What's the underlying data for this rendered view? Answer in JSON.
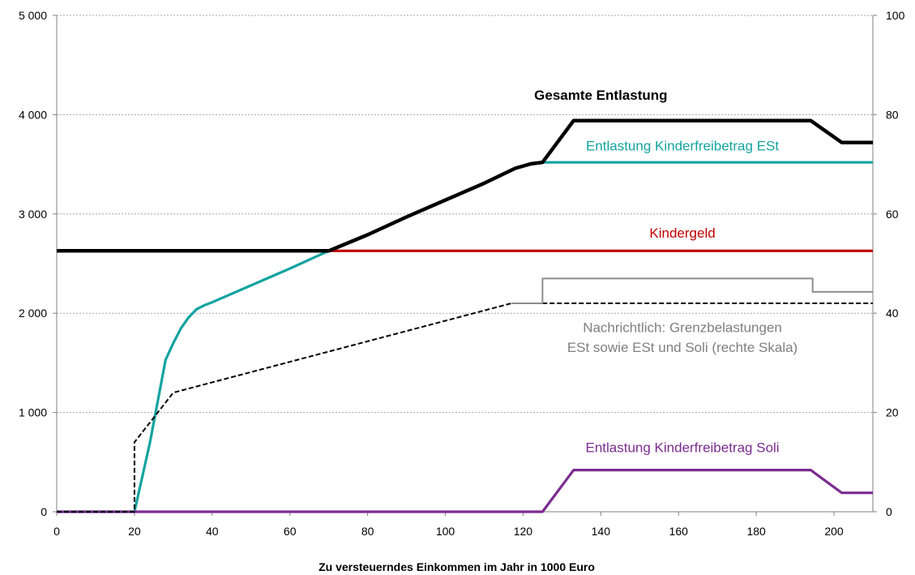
{
  "chart_data": {
    "type": "line",
    "xlabel": "Zu versteuerndes Einkommen im Jahr in 1000 Euro",
    "ylabel": "",
    "ylabel_right": "",
    "xlim": [
      0,
      210
    ],
    "ylim": [
      0,
      5000
    ],
    "ylim_right": [
      0,
      100
    ],
    "grid": true,
    "x_ticks": [
      0,
      20,
      40,
      60,
      80,
      100,
      120,
      140,
      160,
      180,
      200
    ],
    "x_tick_labels": [
      "0",
      "20",
      "40",
      "60",
      "80",
      "100",
      "120",
      "140",
      "160",
      "180",
      "200"
    ],
    "y_ticks": [
      0,
      1000,
      2000,
      3000,
      4000,
      5000
    ],
    "y_tick_labels": [
      "0",
      "1 000",
      "2 000",
      "3 000",
      "4 000",
      "5 000"
    ],
    "y_right_ticks": [
      0,
      20,
      40,
      60,
      80,
      100
    ],
    "y_right_tick_labels": [
      "0",
      "20",
      "40",
      "60",
      "80",
      "100"
    ],
    "series": [
      {
        "key": "kindergeld",
        "name": "Kindergeld",
        "color": "#c00000",
        "axis": "left",
        "dash": false,
        "points": [
          [
            0,
            2628
          ],
          [
            210,
            2628
          ]
        ]
      },
      {
        "key": "entlastung_est",
        "name": "Entlastung Kinderfreibetrag ESt",
        "color": "#14a3a0",
        "axis": "left",
        "dash": false,
        "points": [
          [
            0,
            0
          ],
          [
            20,
            0
          ],
          [
            24,
            700
          ],
          [
            28,
            1530
          ],
          [
            30,
            1700
          ],
          [
            32,
            1850
          ],
          [
            34,
            1960
          ],
          [
            36,
            2040
          ],
          [
            38,
            2080
          ],
          [
            40,
            2110
          ],
          [
            50,
            2280
          ],
          [
            60,
            2450
          ],
          [
            70,
            2628
          ],
          [
            80,
            2790
          ],
          [
            90,
            2970
          ],
          [
            100,
            3140
          ],
          [
            110,
            3310
          ],
          [
            118,
            3460
          ],
          [
            122,
            3505
          ],
          [
            125,
            3520
          ],
          [
            210,
            3520
          ]
        ]
      },
      {
        "key": "gesamte_entlastung",
        "name": "Gesamte Entlastung",
        "color": "#000000",
        "axis": "left",
        "dash": false,
        "points": [
          [
            0,
            2628
          ],
          [
            70,
            2628
          ],
          [
            80,
            2790
          ],
          [
            90,
            2970
          ],
          [
            100,
            3140
          ],
          [
            110,
            3310
          ],
          [
            118,
            3460
          ],
          [
            122,
            3505
          ],
          [
            125,
            3520
          ],
          [
            133,
            3940
          ],
          [
            194,
            3940
          ],
          [
            202,
            3720
          ],
          [
            210,
            3720
          ]
        ]
      },
      {
        "key": "entlastung_soli",
        "name": "Entlastung Kinderfreibetrag Soli",
        "color": "#7b2c8f",
        "axis": "left",
        "dash": false,
        "points": [
          [
            0,
            0
          ],
          [
            125,
            0
          ],
          [
            133,
            420
          ],
          [
            194,
            420
          ],
          [
            202,
            190
          ],
          [
            210,
            190
          ]
        ]
      },
      {
        "key": "grenzbelastung_est",
        "name": "",
        "color": "#000000",
        "axis": "right",
        "dash": true,
        "points": [
          [
            0,
            0
          ],
          [
            20,
            0
          ],
          [
            20,
            14
          ],
          [
            30,
            24
          ],
          [
            117,
            42
          ],
          [
            210,
            42
          ]
        ]
      },
      {
        "key": "grenzbelastung_est_soli",
        "name": "",
        "color": "#8c8c8c",
        "axis": "right",
        "dash": false,
        "points": [
          [
            117,
            42
          ],
          [
            125,
            42
          ],
          [
            125,
            47
          ],
          [
            194.5,
            47
          ],
          [
            194.5,
            44.3
          ],
          [
            210,
            44.3
          ]
        ]
      }
    ],
    "annotations": [
      {
        "text": "Gesamte Entlastung",
        "color": "#000000",
        "bold": true,
        "x": 140,
        "y": 4150
      },
      {
        "text": "Entlastung Kinderfreibetrag ESt",
        "color": "#14a3a0",
        "bold": false,
        "x": 161,
        "y": 3640
      },
      {
        "text": "Kindergeld",
        "color": "#c00000",
        "bold": false,
        "x": 161,
        "y": 2760
      },
      {
        "text": "Nachrichtlich: Grenzbelastungen",
        "color": "#7f7f7f",
        "bold": false,
        "x": 161,
        "y": 1810
      },
      {
        "text": "ESt sowie ESt und Soli (rechte Skala)",
        "color": "#7f7f7f",
        "bold": false,
        "x": 161,
        "y": 1610
      },
      {
        "text": "Entlastung Kinderfreibetrag Soli",
        "color": "#7b2c8f",
        "bold": false,
        "x": 161,
        "y": 600
      }
    ]
  }
}
